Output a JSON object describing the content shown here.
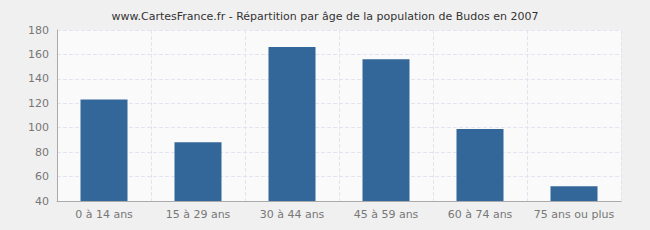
{
  "chart_data": {
    "type": "bar",
    "title": "www.CartesFrance.fr - Répartition par âge de la population de Budos en 2007",
    "categories": [
      "0 à 14 ans",
      "15 à 29 ans",
      "30 à 44 ans",
      "45 à 59 ans",
      "60 à 74 ans",
      "75 ans ou plus"
    ],
    "values": [
      123,
      88,
      166,
      156,
      99,
      52
    ],
    "color": "#336699",
    "ylim": [
      40,
      180
    ],
    "yticks": [
      40,
      60,
      80,
      100,
      120,
      140,
      160,
      180
    ],
    "grid": true
  }
}
